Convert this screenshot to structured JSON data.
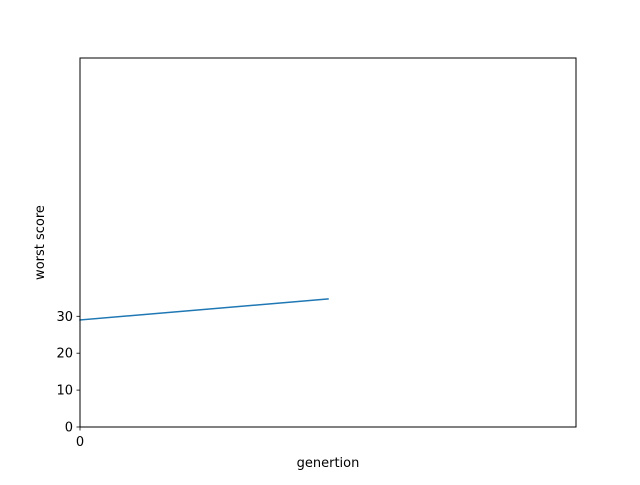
{
  "chart_data": {
    "type": "line",
    "title": "",
    "xlabel": "genertion",
    "ylabel": "worst score",
    "xlim": [
      0,
      2
    ],
    "ylim": [
      0,
      100
    ],
    "xticks": [
      0
    ],
    "xtick_labels": [
      "0"
    ],
    "yticks": [
      0,
      10,
      20,
      30
    ],
    "ytick_labels": [
      "0",
      "10",
      "20",
      "30"
    ],
    "grid": false,
    "legend": "none",
    "series": [
      {
        "color": "#1f77b4",
        "x": [
          0,
          1
        ],
        "y": [
          29,
          34.7
        ]
      }
    ]
  }
}
